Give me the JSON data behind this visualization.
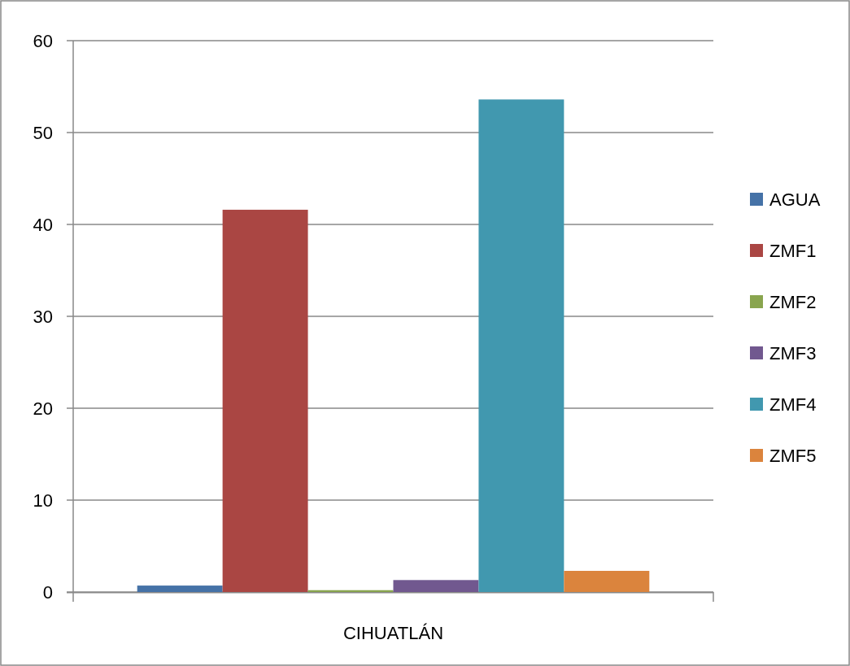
{
  "chart_data": {
    "type": "bar",
    "categories": [
      "CIHUATLÁN"
    ],
    "series": [
      {
        "name": "AGUA",
        "color": "#4572a7",
        "values": [
          0.7
        ]
      },
      {
        "name": "ZMF1",
        "color": "#aa4643",
        "values": [
          41.6
        ]
      },
      {
        "name": "ZMF2",
        "color": "#89a54e",
        "values": [
          0.2
        ]
      },
      {
        "name": "ZMF3",
        "color": "#71588f",
        "values": [
          1.3
        ]
      },
      {
        "name": "ZMF4",
        "color": "#4198af",
        "values": [
          53.6
        ]
      },
      {
        "name": "ZMF5",
        "color": "#db843d",
        "values": [
          2.3
        ]
      }
    ],
    "ylim": [
      0,
      60
    ],
    "yticks": [
      0,
      10,
      20,
      30,
      40,
      50,
      60
    ],
    "grid": "y",
    "legend": "right"
  }
}
